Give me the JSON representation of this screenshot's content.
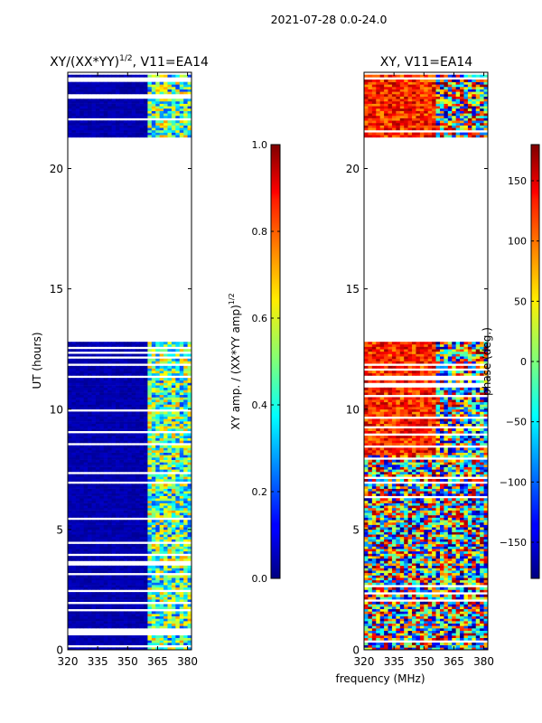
{
  "figure_title": "2021-07-28 0.0-24.0",
  "chart_data": [
    {
      "type": "heatmap",
      "title": "XY/(XX*YY)^{1/2}, V11=EA14",
      "title_main": "XY/(XX*YY)",
      "title_sup": "1/2",
      "title_tail": ", V11=EA14",
      "xlabel": "frequency (MHz)",
      "ylabel": "UT (hours)",
      "xlim": [
        320,
        382
      ],
      "ylim": [
        0,
        24
      ],
      "xticks": [
        320,
        335,
        350,
        365,
        380
      ],
      "yticks": [
        0,
        5,
        10,
        15,
        20
      ],
      "data_bands": [
        [
          0,
          12.8
        ],
        [
          21.3,
          23.9
        ]
      ],
      "colorbar": {
        "label": "XY amp. / (XX*YY amp)^{1/2}",
        "label_main": "XY amp. / (XX*YY amp)",
        "label_sup": "1/2",
        "range": [
          0,
          1
        ],
        "ticks": [
          "0.0",
          "0.2",
          "0.4",
          "0.6",
          "0.8",
          "1.0"
        ],
        "colormap": "jet"
      }
    },
    {
      "type": "heatmap",
      "title": "XY, V11=EA14",
      "xlabel": "frequency (MHz)",
      "ylabel": "",
      "xlim": [
        320,
        382
      ],
      "ylim": [
        0,
        24
      ],
      "xticks": [
        320,
        335,
        350,
        365,
        380
      ],
      "yticks": [
        0,
        5,
        10,
        15,
        20
      ],
      "data_bands": [
        [
          0,
          12.8
        ],
        [
          21.3,
          23.9
        ]
      ],
      "colorbar": {
        "label": "phase (deg.)",
        "range": [
          -180,
          180
        ],
        "ticks": [
          "−150",
          "−100",
          "−50",
          "0",
          "50",
          "100",
          "150"
        ],
        "colormap": "jet"
      }
    }
  ]
}
